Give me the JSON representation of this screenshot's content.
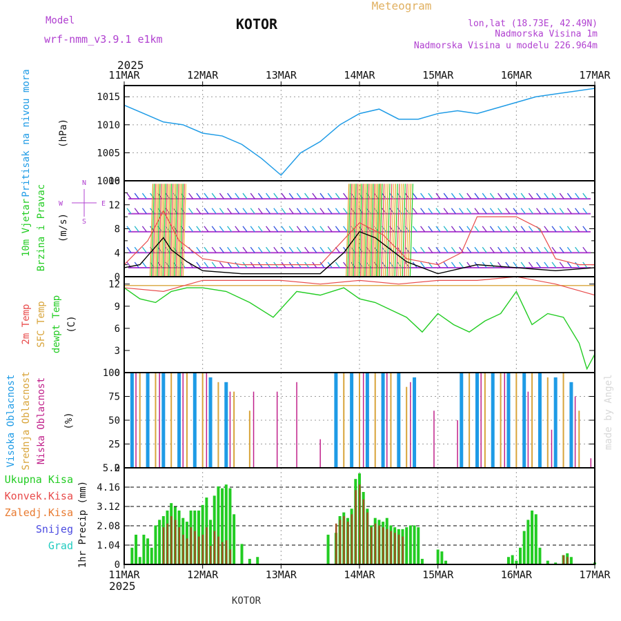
{
  "header": {
    "model_label": "Model",
    "model_name": "wrf-nmm_v3.9.1 e1km",
    "station": "KOTOR",
    "product": "Meteogram",
    "location": "lon,lat (18.73E, 42.49N)",
    "elevation": "Nadmorska Visina 1m",
    "model_elevation": "Nadmorska Visina u modelu 226.964m",
    "year": "2025",
    "footer_station": "KOTOR",
    "credit": "made by Angel"
  },
  "colors": {
    "pressure": "#1e9be6",
    "temp": "#e84a4a",
    "sfc": "#d8a43a",
    "dewpt": "#22cc22",
    "high_cloud": "#1e9be6",
    "mid_cloud": "#d8a43a",
    "low_cloud": "#c0208a",
    "rain": "#22cc22",
    "conv": "#e84a4a",
    "freezing": "#e87a30",
    "snow": "#4a4ae0",
    "graupel": "#22ccc0",
    "wind_label": "#22cc22",
    "purple": "#b040d0"
  },
  "chart_data": [
    {
      "type": "line",
      "panel": "pressure",
      "ylabel": [
        "Pritisak na nivou mora",
        "(hPa)"
      ],
      "x_ticks": [
        "11MAR",
        "12MAR",
        "13MAR",
        "14MAR",
        "15MAR",
        "16MAR",
        "17MAR"
      ],
      "ylim": [
        1000,
        1017
      ],
      "y_ticks": [
        1000,
        1005,
        1010,
        1015
      ],
      "grid": true,
      "series": [
        {
          "x": [
            0,
            0.25,
            0.5,
            0.75,
            1.0,
            1.25,
            1.5,
            1.75,
            2.0,
            2.25,
            2.5,
            2.75,
            3.0,
            3.25,
            3.5,
            3.75,
            4.0,
            4.25,
            4.5,
            4.75,
            5.0,
            5.25,
            5.5,
            5.75,
            6.0
          ],
          "values": [
            1013.5,
            1012,
            1010.5,
            1010,
            1008.5,
            1008,
            1006.5,
            1004,
            1001,
            1005,
            1007,
            1010,
            1012,
            1012.8,
            1011,
            1011,
            1012,
            1012.5,
            1012,
            1013,
            1014,
            1015,
            1015.5,
            1016,
            1016.5
          ]
        }
      ]
    },
    {
      "type": "line",
      "panel": "wind",
      "ylabel": [
        "10m Vjetar",
        "Brzina i Pravac",
        "(m/s)"
      ],
      "direction_legend": [
        "N",
        "E",
        "S",
        "W"
      ],
      "ylim": [
        0,
        16
      ],
      "y_ticks": [
        0,
        4,
        8,
        12,
        16
      ],
      "y_tick_labels": [
        "0",
        "4",
        "8",
        "12",
        "16"
      ],
      "minor_y_ticks": [
        2,
        6,
        10,
        14
      ],
      "series": [
        {
          "name": "wind speed",
          "x": [
            0,
            0.2,
            0.4,
            0.5,
            0.6,
            0.8,
            1.0,
            1.5,
            2.0,
            2.5,
            2.8,
            3.0,
            3.2,
            3.4,
            3.6,
            4.0,
            4.5,
            5.0,
            5.5,
            6.0
          ],
          "values": [
            1.5,
            2,
            5,
            6.5,
            4.5,
            2.5,
            1.0,
            0.5,
            0.5,
            0.5,
            4,
            7.5,
            6.5,
            4.5,
            2.5,
            0.5,
            2.0,
            1.5,
            1.0,
            1.5
          ]
        },
        {
          "name": "gust",
          "x": [
            0,
            0.3,
            0.5,
            0.7,
            1.0,
            1.5,
            2.0,
            2.5,
            3.0,
            3.3,
            3.6,
            4.0,
            4.3,
            4.5,
            5.0,
            5.3,
            5.5,
            5.8,
            6.0
          ],
          "values": [
            2,
            6,
            11,
            6,
            3,
            2,
            2,
            2,
            9,
            7,
            3,
            2,
            4,
            10,
            10,
            8,
            3,
            2,
            2
          ]
        }
      ]
    },
    {
      "type": "line",
      "panel": "temperature",
      "ylabel": [
        "2m Temp",
        "SFC Temp",
        "dewpt Temp",
        "(C)"
      ],
      "ylim": [
        0,
        13
      ],
      "y_ticks": [
        0,
        3,
        6,
        9,
        12
      ],
      "series": [
        {
          "name": "2m Temp",
          "x": [
            0,
            0.5,
            1.0,
            1.5,
            2.0,
            2.5,
            3.0,
            3.5,
            4.0,
            4.5,
            5.0,
            5.5,
            6.0
          ],
          "values": [
            11.5,
            11,
            12.5,
            12.5,
            12.5,
            12,
            12.5,
            12,
            12.5,
            12.5,
            13,
            12,
            10.5
          ]
        },
        {
          "name": "SFC Temp",
          "x": [
            0,
            6.0
          ],
          "values": [
            11.8,
            11.8
          ]
        },
        {
          "name": "dewpt Temp",
          "x": [
            0,
            0.2,
            0.4,
            0.6,
            0.8,
            1.0,
            1.3,
            1.6,
            1.9,
            2.2,
            2.5,
            2.8,
            3.0,
            3.2,
            3.4,
            3.6,
            3.8,
            4.0,
            4.2,
            4.4,
            4.6,
            4.8,
            5.0,
            5.2,
            5.4,
            5.6,
            5.8,
            5.9,
            6.0
          ],
          "values": [
            11.5,
            10,
            9.5,
            11,
            11.5,
            11.5,
            11,
            9.5,
            7.5,
            11,
            10.5,
            11.5,
            10,
            9.5,
            8.5,
            7.5,
            5.5,
            8,
            6.5,
            5.5,
            7,
            8,
            11,
            6.5,
            8,
            7.5,
            4,
            0.5,
            2.5
          ]
        }
      ]
    },
    {
      "type": "bar",
      "panel": "cloud",
      "ylabel": [
        "Visoka Oblacnost",
        "Srednja Oblacnost",
        "Niska Oblacnost",
        "(%)"
      ],
      "ylim": [
        0,
        100
      ],
      "y_ticks": [
        0,
        25,
        50,
        75,
        100
      ],
      "series": [
        {
          "name": "Visoka Oblacnost",
          "x": [
            0.1,
            0.3,
            0.5,
            0.7,
            0.9,
            1.1,
            1.3,
            2.7,
            2.9,
            3.1,
            3.3,
            3.5,
            3.7,
            4.3,
            4.5,
            4.7,
            4.9,
            5.1,
            5.3,
            5.5,
            5.7
          ],
          "values": [
            100,
            100,
            100,
            100,
            100,
            95,
            90,
            100,
            100,
            100,
            100,
            100,
            95,
            100,
            100,
            100,
            100,
            100,
            100,
            95,
            90
          ]
        },
        {
          "name": "Srednja Oblacnost",
          "x": [
            0.2,
            0.4,
            0.6,
            0.8,
            1.0,
            1.2,
            1.4,
            1.6,
            2.8,
            3.0,
            3.2,
            3.4,
            3.6,
            4.4,
            4.6,
            4.8,
            5.0,
            5.2,
            5.4,
            5.6,
            5.8
          ],
          "values": [
            100,
            100,
            100,
            100,
            100,
            90,
            80,
            60,
            100,
            100,
            100,
            100,
            85,
            100,
            100,
            100,
            100,
            100,
            95,
            100,
            60
          ]
        },
        {
          "name": "Niska Oblacnost",
          "x": [
            0.15,
            0.45,
            0.75,
            1.05,
            1.35,
            1.65,
            1.95,
            2.2,
            2.5,
            3.05,
            3.35,
            3.65,
            3.95,
            4.25,
            4.55,
            4.85,
            5.15,
            5.45,
            5.75,
            5.95
          ],
          "values": [
            100,
            100,
            100,
            100,
            80,
            80,
            80,
            90,
            30,
            100,
            100,
            90,
            60,
            50,
            100,
            100,
            80,
            40,
            75,
            10
          ]
        }
      ]
    },
    {
      "type": "bar",
      "panel": "precipitation",
      "ylabel": [
        "1hr Precip (mm)"
      ],
      "legend": [
        "Ukupna Kisa",
        "Konvek.Kisa",
        "Zaledj.Kisa",
        "Snijeg",
        "Grad"
      ],
      "ylim": [
        0,
        5.2
      ],
      "y_ticks": [
        0,
        1.04,
        2.08,
        3.12,
        4.16,
        5.2
      ],
      "y_tick_labels": [
        "0",
        "1.04",
        "2.08",
        "3.12",
        "4.16",
        "5.2"
      ],
      "x_ticks": [
        "11MAR",
        "12MAR",
        "13MAR",
        "14MAR",
        "15MAR",
        "16MAR",
        "17MAR"
      ],
      "series": [
        {
          "name": "Ukupna Kisa",
          "x": [
            0.1,
            0.15,
            0.2,
            0.25,
            0.3,
            0.35,
            0.4,
            0.45,
            0.5,
            0.55,
            0.6,
            0.65,
            0.7,
            0.75,
            0.8,
            0.85,
            0.9,
            0.95,
            1.0,
            1.05,
            1.1,
            1.15,
            1.2,
            1.25,
            1.3,
            1.35,
            1.4,
            1.5,
            1.6,
            1.7,
            2.6,
            2.7,
            2.75,
            2.8,
            2.85,
            2.9,
            2.95,
            3.0,
            3.05,
            3.1,
            3.15,
            3.2,
            3.25,
            3.3,
            3.35,
            3.4,
            3.45,
            3.5,
            3.55,
            3.6,
            3.65,
            3.7,
            3.75,
            3.8,
            4.0,
            4.05,
            4.1,
            4.9,
            4.95,
            5.0,
            5.05,
            5.1,
            5.15,
            5.2,
            5.25,
            5.3,
            5.4,
            5.5,
            5.6,
            5.65,
            5.7,
            6.0
          ],
          "values": [
            0.9,
            1.6,
            0.4,
            1.6,
            1.4,
            0.9,
            2.1,
            2.4,
            2.6,
            2.9,
            3.3,
            3.1,
            2.9,
            2.5,
            2.3,
            2.9,
            2.9,
            2.9,
            3.2,
            3.6,
            2.4,
            3.7,
            4.2,
            4.1,
            4.3,
            4.1,
            2.7,
            1.1,
            0.3,
            0.4,
            1.6,
            1.7,
            2.6,
            2.8,
            2.5,
            3.0,
            4.6,
            4.9,
            3.9,
            3.0,
            2.1,
            2.5,
            2.4,
            2.3,
            2.5,
            2.1,
            2.0,
            1.9,
            1.9,
            2.0,
            2.1,
            2.1,
            2.0,
            0.3,
            0.8,
            0.7,
            0.2,
            0.4,
            0.5,
            0.2,
            0.9,
            1.8,
            2.4,
            2.9,
            2.7,
            0.9,
            0.2,
            0.1,
            0.5,
            0.6,
            0.4,
            0.1
          ]
        },
        {
          "name": "Konvek.Kisa",
          "x": [
            0.5,
            0.55,
            0.6,
            0.65,
            0.7,
            0.75,
            0.8,
            0.85,
            0.9,
            0.95,
            1.0,
            1.05,
            1.1,
            1.15,
            1.2,
            1.25,
            1.3,
            1.35,
            2.7,
            2.75,
            2.8,
            2.85,
            2.9,
            2.95,
            3.0,
            3.05,
            3.1,
            3.15,
            3.2,
            3.25,
            3.3,
            3.35,
            3.4,
            3.45,
            3.5,
            3.55,
            5.6,
            5.65
          ],
          "values": [
            2.0,
            2.2,
            2.6,
            2.4,
            2.0,
            1.6,
            1.4,
            2.0,
            1.8,
            1.5,
            1.6,
            2.0,
            1.0,
            1.8,
            1.5,
            1.2,
            1.3,
            0.8,
            2.2,
            2.4,
            2.6,
            2.3,
            2.7,
            4.0,
            4.3,
            3.5,
            2.8,
            2.0,
            2.2,
            2.1,
            2.0,
            1.9,
            1.8,
            1.7,
            1.6,
            1.5,
            0.5,
            0.4
          ]
        }
      ]
    }
  ]
}
